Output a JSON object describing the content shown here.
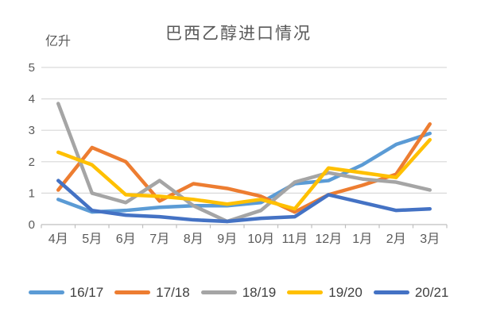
{
  "chart_data": {
    "type": "line",
    "title": "巴西乙醇进口情况",
    "unit_label": "亿升",
    "categories": [
      "4月",
      "5月",
      "6月",
      "7月",
      "8月",
      "9月",
      "10月",
      "11月",
      "12月",
      "1月",
      "2月",
      "3月"
    ],
    "series": [
      {
        "name": "16/17",
        "color": "#5B9BD5",
        "values": [
          0.8,
          0.4,
          0.45,
          0.55,
          0.6,
          0.6,
          0.7,
          1.3,
          1.4,
          1.9,
          2.55,
          2.9
        ]
      },
      {
        "name": "17/18",
        "color": "#ED7D31",
        "values": [
          1.1,
          2.45,
          2.0,
          0.75,
          1.3,
          1.15,
          0.9,
          0.4,
          0.95,
          1.25,
          1.6,
          3.2
        ]
      },
      {
        "name": "18/19",
        "color": "#A5A5A5",
        "values": [
          3.85,
          1.0,
          0.7,
          1.4,
          0.6,
          0.1,
          0.45,
          1.35,
          1.65,
          1.45,
          1.35,
          1.1
        ]
      },
      {
        "name": "19/20",
        "color": "#FFC000",
        "values": [
          2.3,
          1.9,
          0.95,
          0.9,
          0.8,
          0.65,
          0.8,
          0.5,
          1.8,
          1.65,
          1.5,
          2.7
        ]
      },
      {
        "name": "20/21",
        "color": "#4472C4",
        "values": [
          1.4,
          0.45,
          0.3,
          0.25,
          0.15,
          0.1,
          0.2,
          0.25,
          0.95,
          0.7,
          0.45,
          0.5
        ]
      }
    ],
    "y_axis": {
      "min": 0,
      "max": 5,
      "step": 1,
      "tick_labels": [
        "0",
        "1",
        "2",
        "3",
        "4",
        "5"
      ]
    },
    "legend_position": "bottom",
    "grid": true,
    "colors": {
      "gridline": "#D9D9D9",
      "axis": "#BFBFBF",
      "tick_text": "#595959",
      "title_text": "#595959",
      "legend_text": "#404040",
      "background": "#FFFFFF"
    }
  }
}
